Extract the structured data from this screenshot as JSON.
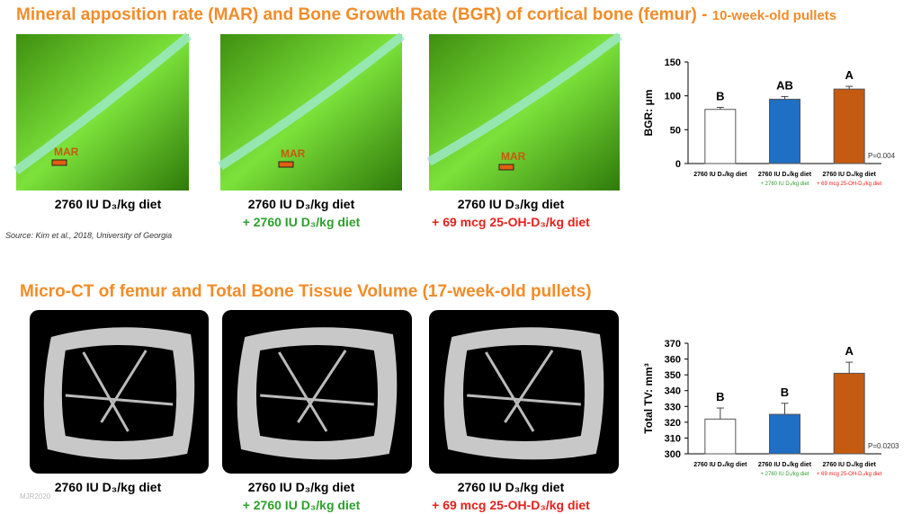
{
  "header": {
    "title": "Mineral apposition rate (MAR) and Bone Growth Rate (BGR) of cortical bone (femur) - ",
    "title_suffix": "10-week-old pullets"
  },
  "top_panels": {
    "image_labels": [
      "MAR",
      "MAR",
      "MAR"
    ],
    "captions": [
      [
        "2760 IU D₃/kg diet",
        null
      ],
      [
        "2760 IU D₃/kg diet",
        "+ 2760 IU D₃/kg diet"
      ],
      [
        "2760 IU D₃/kg diet",
        "+ 69 mcg 25-OH-D₃/kg diet"
      ]
    ],
    "source": "Source:  Kim et al., 2018, University of Georgia"
  },
  "section2": {
    "title": "Micro-CT of femur and Total Bone Tissue Volume  (17-week-old pullets)",
    "captions": [
      [
        "2760 IU D₃/kg diet",
        null
      ],
      [
        "2760 IU D₃/kg diet",
        "+ 2760 IU D₃/kg diet"
      ],
      [
        "2760 IU D₃/kg diet",
        "+ 69 mcg 25-OH-D₃/kg diet"
      ]
    ]
  },
  "footer": {
    "watermark": "MJR2020"
  },
  "chart_data": [
    {
      "type": "bar",
      "ylabel": "BGR: μm",
      "categories": [
        "2760 IU D₃/kg diet",
        "2760 IU D₃/kg diet",
        "2760 IU D₃/kg diet"
      ],
      "category_sublabels": [
        null,
        "+ 2760 IU D₃/kg diet",
        "+ 69 mcg 25-OH-D₃/kg diet"
      ],
      "sublabel_colors": [
        null,
        "#2ca02c",
        "#e8201c"
      ],
      "values": [
        80,
        95,
        110
      ],
      "errors": [
        3,
        4,
        4
      ],
      "colors": [
        "#ffffff",
        "#1f6fc4",
        "#c55a11"
      ],
      "letters": [
        "B",
        "AB",
        "A"
      ],
      "p_value": "P=0.004",
      "ylim": [
        0,
        150
      ],
      "yticks": [
        0,
        50,
        100,
        150
      ]
    },
    {
      "type": "bar",
      "ylabel": "Total TV: mm³",
      "categories": [
        "2760 IU D₃/kg diet",
        "2760 IU D₃/kg diet",
        "2760 IU D₃/kg diet"
      ],
      "category_sublabels": [
        null,
        "+ 2760 IU D₃/kg diet",
        "+ 69 mcg 25-OH-D₃/kg diet"
      ],
      "sublabel_colors": [
        null,
        "#2ca02c",
        "#e8201c"
      ],
      "values": [
        322,
        325,
        351
      ],
      "errors": [
        7,
        7,
        7
      ],
      "colors": [
        "#ffffff",
        "#1f6fc4",
        "#c55a11"
      ],
      "letters": [
        "B",
        "B",
        "A"
      ],
      "p_value": "P=0.0203",
      "ylim": [
        300,
        370
      ],
      "yticks": [
        300,
        310,
        320,
        330,
        340,
        350,
        360,
        370
      ]
    }
  ]
}
